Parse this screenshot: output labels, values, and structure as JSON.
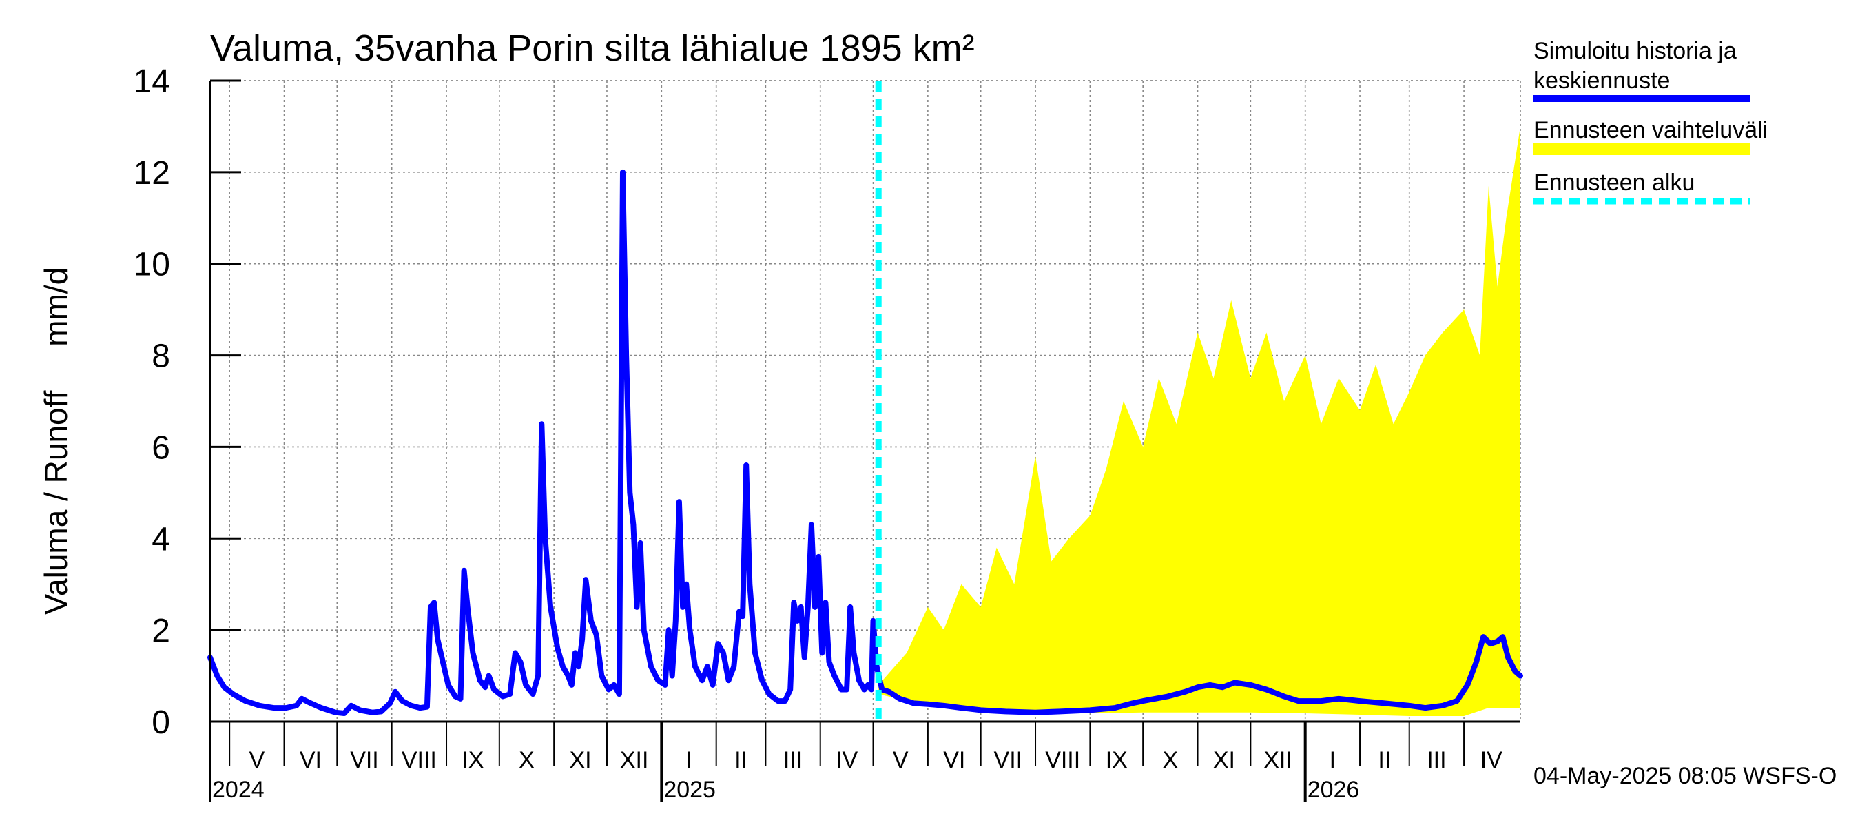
{
  "chart_data": {
    "type": "area",
    "title": "Valuma, 35vanha Porin silta lähialue 1895 km²",
    "ylabel": "Valuma / Runoff     mm/d",
    "xlabel": "",
    "ylim": [
      0,
      14
    ],
    "yticks": [
      0,
      2,
      4,
      6,
      8,
      10,
      12,
      14
    ],
    "grid": true,
    "legend_position": "right",
    "x_range": [
      "2024-04-20",
      "2026-05-03"
    ],
    "forecast_start": "2025-05-04",
    "month_labels": [
      {
        "label": "V",
        "date": "2024-05-01"
      },
      {
        "label": "VI",
        "date": "2024-06-01"
      },
      {
        "label": "VII",
        "date": "2024-07-01"
      },
      {
        "label": "VIII",
        "date": "2024-08-01"
      },
      {
        "label": "IX",
        "date": "2024-09-01"
      },
      {
        "label": "X",
        "date": "2024-10-01"
      },
      {
        "label": "XI",
        "date": "2024-11-01"
      },
      {
        "label": "XII",
        "date": "2024-12-01"
      },
      {
        "label": "I",
        "date": "2025-01-01"
      },
      {
        "label": "II",
        "date": "2025-02-01"
      },
      {
        "label": "III",
        "date": "2025-03-01"
      },
      {
        "label": "IV",
        "date": "2025-04-01"
      },
      {
        "label": "V",
        "date": "2025-05-01"
      },
      {
        "label": "VI",
        "date": "2025-06-01"
      },
      {
        "label": "VII",
        "date": "2025-07-01"
      },
      {
        "label": "VIII",
        "date": "2025-08-01"
      },
      {
        "label": "IX",
        "date": "2025-09-01"
      },
      {
        "label": "X",
        "date": "2025-10-01"
      },
      {
        "label": "XI",
        "date": "2025-11-01"
      },
      {
        "label": "XII",
        "date": "2025-12-01"
      },
      {
        "label": "I",
        "date": "2026-01-01"
      },
      {
        "label": "II",
        "date": "2026-02-01"
      },
      {
        "label": "III",
        "date": "2026-03-01"
      },
      {
        "label": "IV",
        "date": "2026-04-01"
      }
    ],
    "year_labels": [
      {
        "label": "2024",
        "date": "2024-05-01"
      },
      {
        "label": "2025",
        "date": "2025-01-01"
      },
      {
        "label": "2026",
        "date": "2026-01-01"
      }
    ],
    "series": [
      {
        "name": "Simuloitu historia ja keskiennuste",
        "color": "#0000ff",
        "points": [
          [
            "2024-04-20",
            1.4
          ],
          [
            "2024-04-24",
            1.0
          ],
          [
            "2024-04-28",
            0.75
          ],
          [
            "2024-05-03",
            0.6
          ],
          [
            "2024-05-10",
            0.45
          ],
          [
            "2024-05-18",
            0.35
          ],
          [
            "2024-05-26",
            0.3
          ],
          [
            "2024-06-02",
            0.3
          ],
          [
            "2024-06-08",
            0.35
          ],
          [
            "2024-06-11",
            0.5
          ],
          [
            "2024-06-15",
            0.42
          ],
          [
            "2024-06-22",
            0.3
          ],
          [
            "2024-06-30",
            0.2
          ],
          [
            "2024-07-05",
            0.18
          ],
          [
            "2024-07-09",
            0.35
          ],
          [
            "2024-07-14",
            0.25
          ],
          [
            "2024-07-21",
            0.2
          ],
          [
            "2024-07-26",
            0.22
          ],
          [
            "2024-07-31",
            0.4
          ],
          [
            "2024-08-03",
            0.65
          ],
          [
            "2024-08-07",
            0.45
          ],
          [
            "2024-08-12",
            0.35
          ],
          [
            "2024-08-17",
            0.3
          ],
          [
            "2024-08-21",
            0.32
          ],
          [
            "2024-08-23",
            2.5
          ],
          [
            "2024-08-25",
            2.6
          ],
          [
            "2024-08-27",
            1.8
          ],
          [
            "2024-09-02",
            0.8
          ],
          [
            "2024-09-06",
            0.55
          ],
          [
            "2024-09-09",
            0.5
          ],
          [
            "2024-09-11",
            3.3
          ],
          [
            "2024-09-13",
            2.5
          ],
          [
            "2024-09-16",
            1.5
          ],
          [
            "2024-09-20",
            0.9
          ],
          [
            "2024-09-23",
            0.75
          ],
          [
            "2024-09-25",
            1.0
          ],
          [
            "2024-09-28",
            0.7
          ],
          [
            "2024-10-03",
            0.55
          ],
          [
            "2024-10-07",
            0.6
          ],
          [
            "2024-10-10",
            1.5
          ],
          [
            "2024-10-13",
            1.3
          ],
          [
            "2024-10-16",
            0.8
          ],
          [
            "2024-10-20",
            0.6
          ],
          [
            "2024-10-23",
            1.0
          ],
          [
            "2024-10-25",
            6.5
          ],
          [
            "2024-10-27",
            4.0
          ],
          [
            "2024-10-30",
            2.5
          ],
          [
            "2024-11-03",
            1.6
          ],
          [
            "2024-11-06",
            1.2
          ],
          [
            "2024-11-09",
            1.0
          ],
          [
            "2024-11-11",
            0.8
          ],
          [
            "2024-11-13",
            1.5
          ],
          [
            "2024-11-15",
            1.2
          ],
          [
            "2024-11-17",
            1.8
          ],
          [
            "2024-11-19",
            3.1
          ],
          [
            "2024-11-22",
            2.2
          ],
          [
            "2024-11-25",
            1.9
          ],
          [
            "2024-11-28",
            1.0
          ],
          [
            "2024-12-02",
            0.7
          ],
          [
            "2024-12-05",
            0.8
          ],
          [
            "2024-12-08",
            0.6
          ],
          [
            "2024-12-10",
            12.0
          ],
          [
            "2024-12-12",
            8.0
          ],
          [
            "2024-12-14",
            5.0
          ],
          [
            "2024-12-16",
            4.3
          ],
          [
            "2024-12-18",
            2.5
          ],
          [
            "2024-12-20",
            3.9
          ],
          [
            "2024-12-22",
            2.0
          ],
          [
            "2024-12-26",
            1.2
          ],
          [
            "2024-12-30",
            0.9
          ],
          [
            "2025-01-03",
            0.8
          ],
          [
            "2025-01-05",
            2.0
          ],
          [
            "2025-01-07",
            1.0
          ],
          [
            "2025-01-09",
            2.2
          ],
          [
            "2025-01-11",
            4.8
          ],
          [
            "2025-01-13",
            2.5
          ],
          [
            "2025-01-15",
            3.0
          ],
          [
            "2025-01-17",
            2.0
          ],
          [
            "2025-01-20",
            1.2
          ],
          [
            "2025-01-24",
            0.9
          ],
          [
            "2025-01-27",
            1.2
          ],
          [
            "2025-01-30",
            0.8
          ],
          [
            "2025-02-02",
            1.7
          ],
          [
            "2025-02-05",
            1.5
          ],
          [
            "2025-02-08",
            0.9
          ],
          [
            "2025-02-11",
            1.2
          ],
          [
            "2025-02-14",
            2.4
          ],
          [
            "2025-02-16",
            2.3
          ],
          [
            "2025-02-18",
            5.6
          ],
          [
            "2025-02-20",
            3.0
          ],
          [
            "2025-02-23",
            1.5
          ],
          [
            "2025-02-27",
            0.9
          ],
          [
            "2025-03-03",
            0.6
          ],
          [
            "2025-03-08",
            0.45
          ],
          [
            "2025-03-12",
            0.45
          ],
          [
            "2025-03-15",
            0.7
          ],
          [
            "2025-03-17",
            2.6
          ],
          [
            "2025-03-19",
            2.2
          ],
          [
            "2025-03-21",
            2.5
          ],
          [
            "2025-03-23",
            1.4
          ],
          [
            "2025-03-25",
            2.5
          ],
          [
            "2025-03-27",
            4.3
          ],
          [
            "2025-03-29",
            2.5
          ],
          [
            "2025-03-31",
            3.6
          ],
          [
            "2025-04-02",
            1.5
          ],
          [
            "2025-04-04",
            2.6
          ],
          [
            "2025-04-06",
            1.3
          ],
          [
            "2025-04-09",
            1.0
          ],
          [
            "2025-04-13",
            0.7
          ],
          [
            "2025-04-16",
            0.7
          ],
          [
            "2025-04-18",
            2.5
          ],
          [
            "2025-04-20",
            1.5
          ],
          [
            "2025-04-23",
            0.9
          ],
          [
            "2025-04-26",
            0.7
          ],
          [
            "2025-04-28",
            0.8
          ],
          [
            "2025-04-30",
            0.7
          ],
          [
            "2025-05-01",
            2.2
          ],
          [
            "2025-05-03",
            1.2
          ],
          [
            "2025-05-06",
            0.7
          ],
          [
            "2025-05-10",
            0.65
          ],
          [
            "2025-05-16",
            0.5
          ],
          [
            "2025-05-24",
            0.4
          ],
          [
            "2025-06-01",
            0.38
          ],
          [
            "2025-06-10",
            0.35
          ],
          [
            "2025-06-20",
            0.3
          ],
          [
            "2025-07-01",
            0.25
          ],
          [
            "2025-07-15",
            0.22
          ],
          [
            "2025-08-01",
            0.2
          ],
          [
            "2025-08-15",
            0.22
          ],
          [
            "2025-09-01",
            0.25
          ],
          [
            "2025-09-15",
            0.3
          ],
          [
            "2025-09-25",
            0.4
          ],
          [
            "2025-10-01",
            0.45
          ],
          [
            "2025-10-15",
            0.55
          ],
          [
            "2025-10-25",
            0.65
          ],
          [
            "2025-11-01",
            0.75
          ],
          [
            "2025-11-08",
            0.8
          ],
          [
            "2025-11-15",
            0.75
          ],
          [
            "2025-11-22",
            0.85
          ],
          [
            "2025-12-01",
            0.8
          ],
          [
            "2025-12-10",
            0.7
          ],
          [
            "2025-12-20",
            0.55
          ],
          [
            "2025-12-28",
            0.45
          ],
          [
            "2026-01-10",
            0.45
          ],
          [
            "2026-01-20",
            0.5
          ],
          [
            "2026-02-01",
            0.45
          ],
          [
            "2026-02-15",
            0.4
          ],
          [
            "2026-03-01",
            0.35
          ],
          [
            "2026-03-10",
            0.3
          ],
          [
            "2026-03-20",
            0.35
          ],
          [
            "2026-03-28",
            0.45
          ],
          [
            "2026-04-03",
            0.8
          ],
          [
            "2026-04-08",
            1.3
          ],
          [
            "2026-04-12",
            1.85
          ],
          [
            "2026-04-16",
            1.7
          ],
          [
            "2026-04-20",
            1.75
          ],
          [
            "2026-04-23",
            1.85
          ],
          [
            "2026-04-26",
            1.4
          ],
          [
            "2026-04-30",
            1.1
          ],
          [
            "2026-05-03",
            1.0
          ]
        ]
      },
      {
        "name": "Ennusteen vaihteluväli",
        "color": "#ffff00",
        "upper": [
          [
            "2025-05-04",
            0.8
          ],
          [
            "2025-05-20",
            1.5
          ],
          [
            "2025-06-01",
            2.5
          ],
          [
            "2025-06-10",
            2.0
          ],
          [
            "2025-06-20",
            3.0
          ],
          [
            "2025-07-01",
            2.5
          ],
          [
            "2025-07-10",
            3.8
          ],
          [
            "2025-07-20",
            3.0
          ],
          [
            "2025-08-01",
            5.8
          ],
          [
            "2025-08-10",
            3.5
          ],
          [
            "2025-08-20",
            4.0
          ],
          [
            "2025-09-01",
            4.5
          ],
          [
            "2025-09-10",
            5.5
          ],
          [
            "2025-09-20",
            7.0
          ],
          [
            "2025-10-01",
            6.0
          ],
          [
            "2025-10-10",
            7.5
          ],
          [
            "2025-10-20",
            6.5
          ],
          [
            "2025-11-01",
            8.5
          ],
          [
            "2025-11-10",
            7.5
          ],
          [
            "2025-11-20",
            9.2
          ],
          [
            "2025-12-01",
            7.5
          ],
          [
            "2025-12-10",
            8.5
          ],
          [
            "2025-12-20",
            7.0
          ],
          [
            "2026-01-01",
            8.0
          ],
          [
            "2026-01-10",
            6.5
          ],
          [
            "2026-01-20",
            7.5
          ],
          [
            "2026-02-01",
            6.8
          ],
          [
            "2026-02-10",
            7.8
          ],
          [
            "2026-02-20",
            6.5
          ],
          [
            "2026-03-01",
            7.2
          ],
          [
            "2026-03-10",
            8.0
          ],
          [
            "2026-03-20",
            8.5
          ],
          [
            "2026-04-01",
            9.0
          ],
          [
            "2026-04-10",
            8.0
          ],
          [
            "2026-04-15",
            11.7
          ],
          [
            "2026-04-20",
            9.5
          ],
          [
            "2026-04-25",
            11.0
          ],
          [
            "2026-05-01",
            12.5
          ],
          [
            "2026-05-03",
            13.0
          ]
        ],
        "lower": [
          [
            "2025-05-04",
            0.6
          ],
          [
            "2025-06-01",
            0.35
          ],
          [
            "2025-07-01",
            0.22
          ],
          [
            "2025-08-01",
            0.2
          ],
          [
            "2025-09-01",
            0.18
          ],
          [
            "2025-10-01",
            0.2
          ],
          [
            "2025-11-01",
            0.2
          ],
          [
            "2025-12-01",
            0.2
          ],
          [
            "2026-01-01",
            0.18
          ],
          [
            "2026-02-01",
            0.15
          ],
          [
            "2026-03-01",
            0.12
          ],
          [
            "2026-04-01",
            0.12
          ],
          [
            "2026-04-15",
            0.3
          ],
          [
            "2026-05-03",
            0.3
          ]
        ]
      },
      {
        "name": "Ennusteen alku",
        "color": "#00ffff"
      }
    ]
  },
  "footer": {
    "timestamp": "04-May-2025 08:05 WSFS-O"
  }
}
